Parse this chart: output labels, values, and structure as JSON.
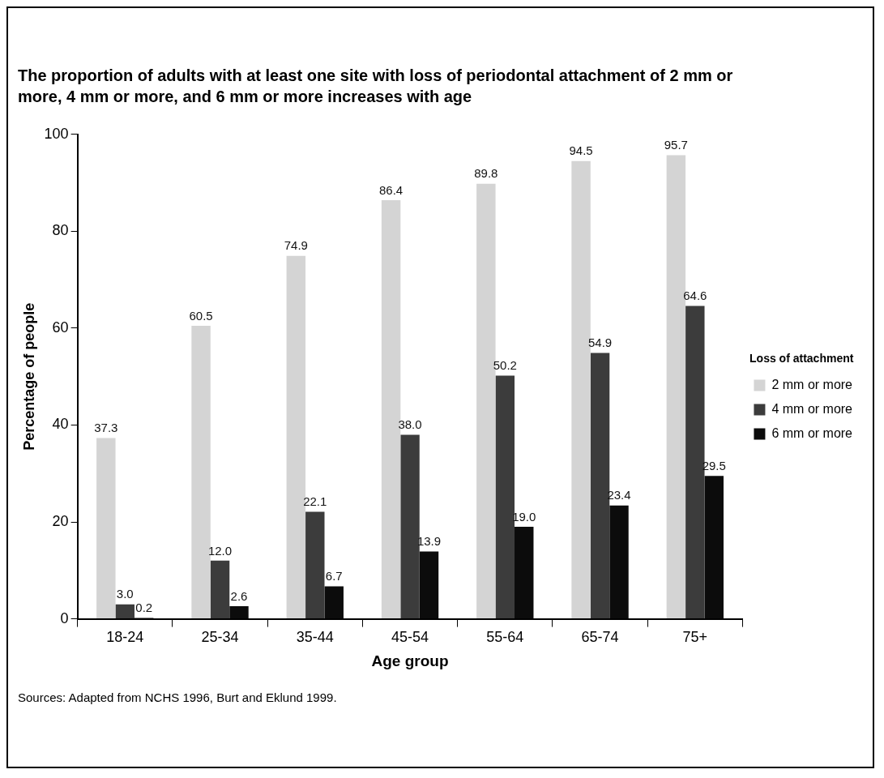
{
  "chart_data": {
    "type": "bar",
    "title": "The proportion of adults with at least one site with loss of periodontal attachment of 2 mm or more, 4 mm or more, and 6 mm or more increases with age",
    "xlabel": "Age group",
    "ylabel": "Percentage of people",
    "legend_title": "Loss of attachment",
    "legend": "right",
    "grid": false,
    "categories": [
      "18-24",
      "25-34",
      "35-44",
      "45-54",
      "55-64",
      "65-74",
      "75+"
    ],
    "ylim": [
      0,
      100
    ],
    "yticks": [
      0,
      20,
      40,
      60,
      80,
      100
    ],
    "series": [
      {
        "name": "2 mm or more",
        "color": "#d4d4d4",
        "values": [
          37.3,
          60.5,
          74.9,
          86.4,
          89.8,
          94.5,
          95.7
        ],
        "value_labels": [
          "37.3",
          "60.5",
          "74.9",
          "86.4",
          "89.8",
          "94.5",
          "95.7"
        ]
      },
      {
        "name": "4 mm or more",
        "color": "#3c3c3c",
        "values": [
          3.0,
          12.0,
          22.1,
          38.0,
          50.2,
          54.9,
          64.6
        ],
        "value_labels": [
          "3.0",
          "12.0",
          "22.1",
          "38.0",
          "50.2",
          "54.9",
          "64.6"
        ]
      },
      {
        "name": "6 mm or more",
        "color": "#0c0c0c",
        "values": [
          0.2,
          2.6,
          6.7,
          13.9,
          19.0,
          23.4,
          29.5
        ],
        "value_labels": [
          "0.2",
          "2.6",
          "6.7",
          "13.9",
          "19.0",
          "23.4",
          "29.5"
        ]
      }
    ],
    "annotations": [
      "Sources: Adapted from NCHS 1996, Burt and Eklund 1999."
    ]
  }
}
